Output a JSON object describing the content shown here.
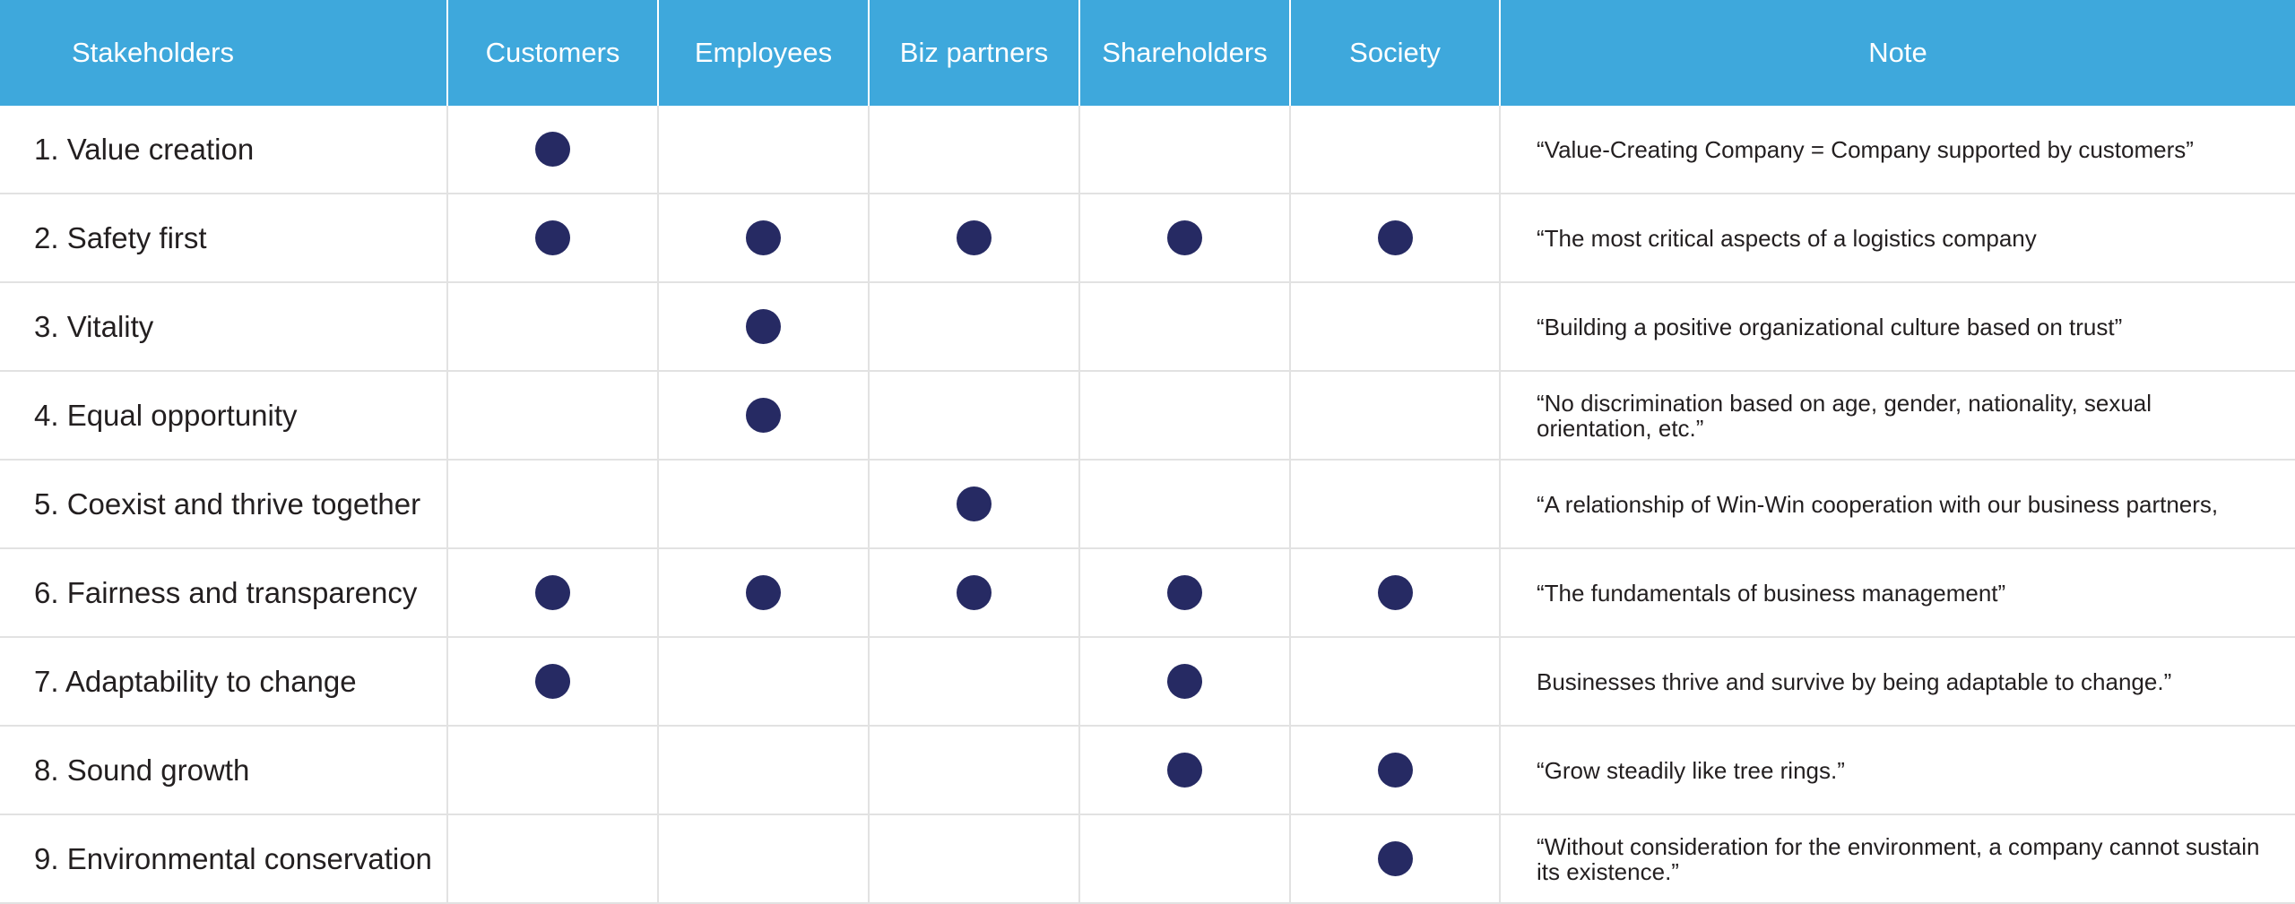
{
  "colors": {
    "header_bg": "#3ea8dc",
    "dot": "#262a63",
    "grid": "#e2e2e2"
  },
  "header": {
    "stakeholders": "Stakeholders",
    "customers": "Customers",
    "employees": "Employees",
    "biz_partners": "Biz partners",
    "shareholders": "Shareholders",
    "society": "Society",
    "note": "Note"
  },
  "rows": [
    {
      "label": "1. Value creation",
      "marks": [
        true,
        false,
        false,
        false,
        false
      ],
      "note": "“Value-Creating Company = Company supported by customers”"
    },
    {
      "label": "2. Safety first",
      "marks": [
        true,
        true,
        true,
        true,
        true
      ],
      "note": "“The most critical aspects of a logistics company"
    },
    {
      "label": "3. Vitality",
      "marks": [
        false,
        true,
        false,
        false,
        false
      ],
      "note": "“Building a positive organizational culture based on trust”"
    },
    {
      "label": "4. Equal opportunity",
      "marks": [
        false,
        true,
        false,
        false,
        false
      ],
      "note": "“No discrimination based on age, gender, nationality, sexual orientation, etc.”"
    },
    {
      "label": "5. Coexist and thrive together",
      "marks": [
        false,
        false,
        true,
        false,
        false
      ],
      "note": "“A relationship of Win-Win cooperation with our business partners,"
    },
    {
      "label": "6. Fairness and transparency",
      "marks": [
        true,
        true,
        true,
        true,
        true
      ],
      "note": "“The fundamentals of business management”"
    },
    {
      "label": "7. Adaptability to change",
      "marks": [
        true,
        false,
        false,
        true,
        false
      ],
      "note": "Businesses thrive and survive by being adaptable to change.”"
    },
    {
      "label": "8. Sound growth",
      "marks": [
        false,
        false,
        false,
        true,
        true
      ],
      "note": "“Grow steadily like tree rings.”"
    },
    {
      "label": "9. Environmental conservation",
      "marks": [
        false,
        false,
        false,
        false,
        true
      ],
      "note": "“Without consideration for the environment, a company cannot sustain its existence.”"
    }
  ]
}
